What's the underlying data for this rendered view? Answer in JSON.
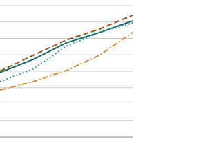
{
  "chart_data": {
    "type": "line",
    "categories": [
      null,
      null,
      null,
      null,
      null
    ],
    "series": [
      {
        "color": "#8b5a1f",
        "dash": "dashed",
        "values": [
          4.0,
          4.97,
          5.9,
          6.57,
          7.41
        ]
      },
      {
        "color": "#1c6b6b",
        "dash": "solid",
        "values": [
          3.92,
          4.72,
          5.73,
          6.36,
          7.07
        ]
      },
      {
        "color": "#2f9c98",
        "dash": "dotted",
        "values": [
          3.37,
          4.13,
          5.52,
          6.36,
          6.95
        ]
      },
      {
        "color": "#d08b3c",
        "dash": "dashdot",
        "values": [
          2.86,
          3.37,
          4.04,
          4.97,
          6.36
        ]
      }
    ],
    "ylim": [
      0,
      8
    ],
    "yticks": [
      0,
      1,
      2,
      3,
      4,
      5,
      6,
      7,
      8
    ],
    "grid": true
  }
}
